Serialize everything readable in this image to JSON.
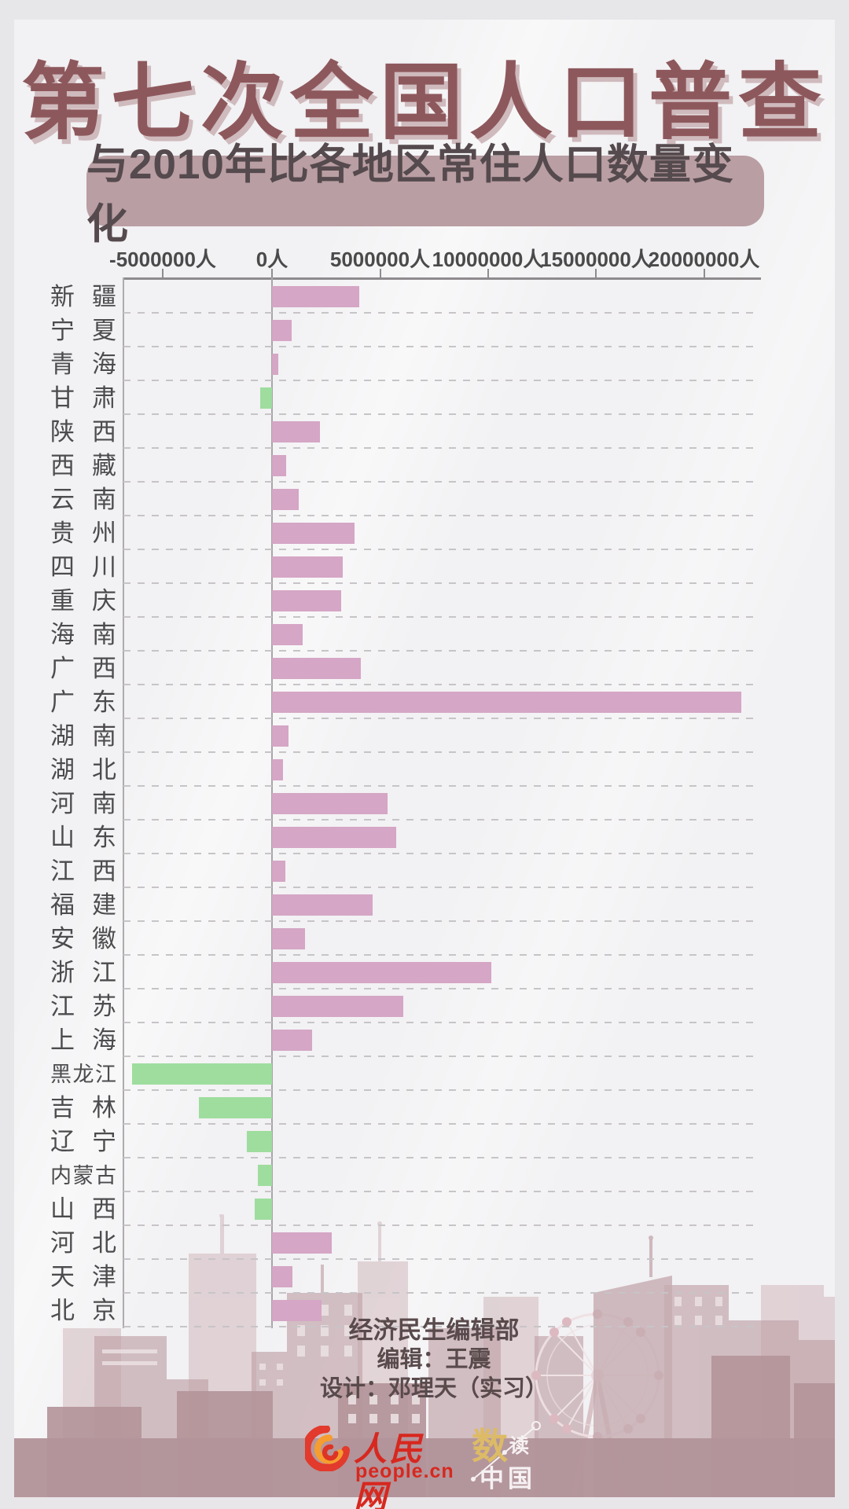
{
  "title": "第七次全国人口普查",
  "credits": {
    "department": "经济民生编辑部",
    "editor": "编辑：王震",
    "designer": "设计：邓理天（实习）"
  },
  "logos": {
    "people_cn_name": "人民网",
    "people_cn_domain": "people.cn",
    "shudu_char1": "数",
    "shudu_char2": "读",
    "shudu_china": "中国"
  },
  "colors": {
    "title_color": "#8d585c",
    "subtitle_pill_bg": "#b99ea3",
    "positive_bar": "#d5a6c5",
    "negative_bar": "#9edd9e",
    "axis_text": "#4a4a4a"
  },
  "chart_data": {
    "type": "bar",
    "orientation": "horizontal",
    "title": "与2010年比各地区常住人口数量变化",
    "unit": "人",
    "xlabel": "",
    "ylabel": "",
    "grid": true,
    "legend": false,
    "x_axis": {
      "tick_values": [
        -5000000,
        0,
        5000000,
        10000000,
        15000000,
        20000000
      ],
      "tick_labels": [
        "-5000000人",
        "0人",
        "5000000人",
        "10000000人",
        "15000000人",
        "20000000人"
      ],
      "range": [
        -6870000,
        22620000
      ]
    },
    "categories": [
      "新疆",
      "宁夏",
      "青海",
      "甘肃",
      "陕西",
      "西藏",
      "云南",
      "贵州",
      "四川",
      "重庆",
      "海南",
      "广西",
      "广东",
      "湖南",
      "湖北",
      "河南",
      "山东",
      "江西",
      "福建",
      "安徽",
      "浙江",
      "江苏",
      "上海",
      "黑龙江",
      "吉林",
      "辽宁",
      "内蒙古",
      "山西",
      "河北",
      "天津",
      "北京"
    ],
    "values": [
      4039011,
      901304,
      297235,
      -555423,
      2201621,
      645934,
      1243038,
      3815680,
      3256666,
      3207989,
      1409714,
      4100175,
      21709378,
      761142,
      514817,
      5341952,
      5734388,
      621160,
      4645870,
      1526661,
      10140697,
      6088113,
      1851747,
      -6462136,
      -3388844,
      -1154916,
      -657166,
      -796495,
      2756033,
      927785,
      2280727
    ]
  }
}
